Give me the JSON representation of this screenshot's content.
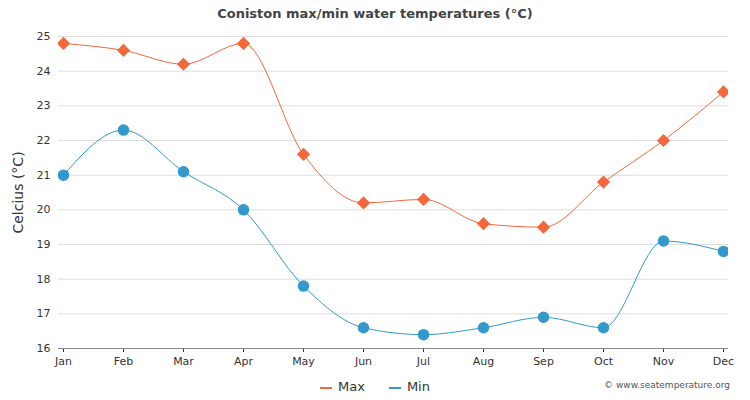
{
  "chart_data": {
    "type": "line",
    "title": "Coniston max/min water temperatures (°C)",
    "y_label": "Celcius (°C)",
    "categories": [
      "Jan",
      "Feb",
      "Mar",
      "Apr",
      "May",
      "Jun",
      "Jul",
      "Aug",
      "Sep",
      "Oct",
      "Nov",
      "Dec"
    ],
    "series": [
      {
        "name": "Max",
        "color": "#f4683a",
        "marker": "diamond",
        "values": [
          24.8,
          24.6,
          24.2,
          24.8,
          21.6,
          20.2,
          20.3,
          19.6,
          19.5,
          20.8,
          22.0,
          23.4
        ]
      },
      {
        "name": "Min",
        "color": "#3399cc",
        "marker": "circle",
        "values": [
          21.0,
          22.3,
          21.1,
          20.0,
          17.8,
          16.6,
          16.4,
          16.6,
          16.9,
          16.6,
          19.1,
          18.8
        ]
      }
    ],
    "ylim": [
      16,
      25
    ],
    "yticks": [
      16,
      17,
      18,
      19,
      20,
      21,
      22,
      23,
      24,
      25
    ],
    "grid": true,
    "legend": "bottom",
    "annotations": [
      "© www.seatemperature.org"
    ]
  }
}
